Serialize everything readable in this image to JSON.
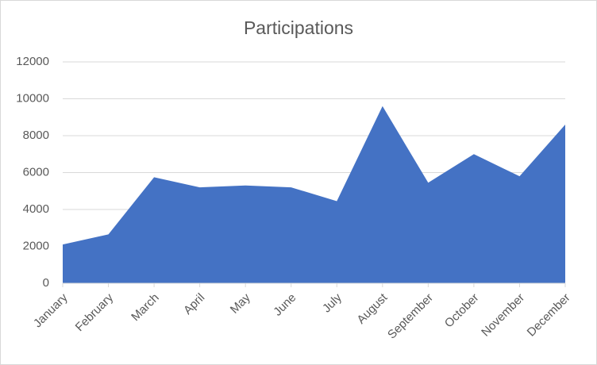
{
  "chart_data": {
    "type": "area",
    "title": "Participations",
    "categories": [
      "January",
      "February",
      "March",
      "April",
      "May",
      "June",
      "July",
      "August",
      "September",
      "October",
      "November",
      "December"
    ],
    "values": [
      2100,
      2650,
      5750,
      5200,
      5300,
      5200,
      4450,
      9600,
      5450,
      7000,
      5800,
      8600
    ],
    "color": "#4472c4",
    "ylim": [
      0,
      12000
    ],
    "yticks": [
      0,
      2000,
      4000,
      6000,
      8000,
      10000,
      12000
    ],
    "grid": true
  }
}
